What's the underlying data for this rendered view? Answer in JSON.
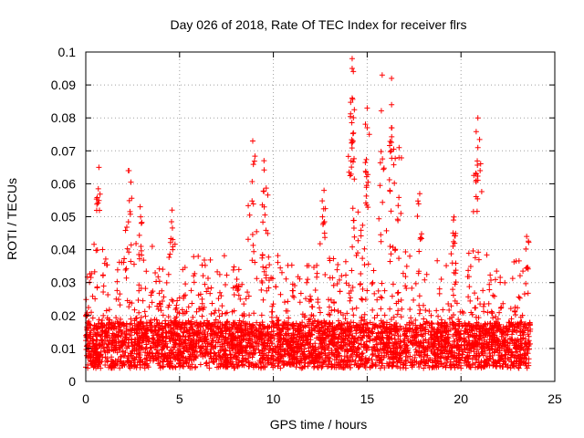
{
  "chart_data": {
    "type": "scatter",
    "title": "Day 026 of 2018, Rate Of TEC Index for receiver flrs",
    "xlabel": "GPS time / hours",
    "ylabel": "ROTI / TECUs",
    "xlim": [
      0,
      25
    ],
    "ylim": [
      0,
      0.1
    ],
    "x_ticks": [
      0,
      5,
      10,
      15,
      20,
      25
    ],
    "x_tick_labels": [
      "0",
      "5",
      "10",
      "15",
      "20",
      "25"
    ],
    "y_ticks": [
      0,
      0.01,
      0.02,
      0.03,
      0.04,
      0.05,
      0.06,
      0.07,
      0.08,
      0.09,
      0.1
    ],
    "y_tick_labels": [
      "0",
      "0.01",
      "0.02",
      "0.03",
      "0.04",
      "0.05",
      "0.06",
      "0.07",
      "0.08",
      "0.09",
      "0.1"
    ],
    "grid": true,
    "marker": "+",
    "series": [
      {
        "name": "ROTI",
        "color": "#ff0000",
        "note": "dense cloud of points from 0h to about 23.7h; values mostly 0.003-0.03 TECU/min with spikes",
        "peaks": [
          {
            "x": 0.7,
            "y": 0.065
          },
          {
            "x": 2.3,
            "y": 0.064
          },
          {
            "x": 2.9,
            "y": 0.053
          },
          {
            "x": 4.6,
            "y": 0.052
          },
          {
            "x": 8.9,
            "y": 0.073
          },
          {
            "x": 9.5,
            "y": 0.067
          },
          {
            "x": 12.7,
            "y": 0.058
          },
          {
            "x": 14.2,
            "y": 0.098
          },
          {
            "x": 14.2,
            "y": 0.095
          },
          {
            "x": 14.2,
            "y": 0.086
          },
          {
            "x": 15.0,
            "y": 0.083
          },
          {
            "x": 15.0,
            "y": 0.077
          },
          {
            "x": 15.8,
            "y": 0.093
          },
          {
            "x": 16.3,
            "y": 0.092
          },
          {
            "x": 16.3,
            "y": 0.084
          },
          {
            "x": 16.7,
            "y": 0.071
          },
          {
            "x": 17.8,
            "y": 0.057
          },
          {
            "x": 19.6,
            "y": 0.049
          },
          {
            "x": 20.9,
            "y": 0.08
          },
          {
            "x": 20.9,
            "y": 0.071
          },
          {
            "x": 23.5,
            "y": 0.044
          }
        ]
      }
    ]
  }
}
